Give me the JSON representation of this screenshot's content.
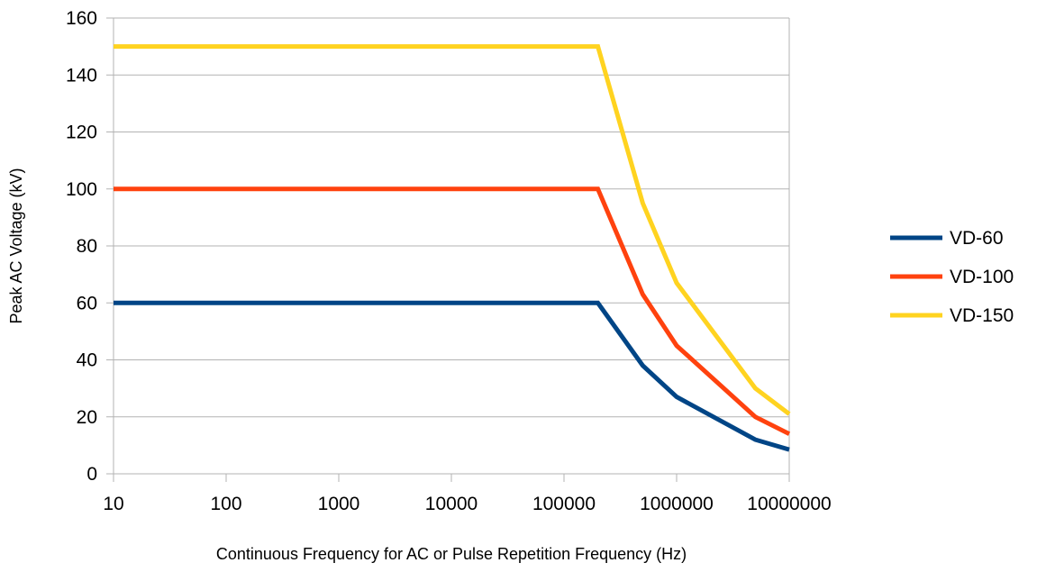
{
  "chart_data": {
    "type": "line",
    "title": "",
    "xlabel": "Continuous Frequency for AC or Pulse Repetition Frequency (Hz)",
    "ylabel": "Peak AC Voltage (kV)",
    "x_scale": "log",
    "xlim": [
      10,
      10000000
    ],
    "ylim": [
      0,
      160
    ],
    "x_ticks": [
      10,
      100,
      1000,
      10000,
      100000,
      1000000,
      10000000
    ],
    "x_tick_labels": [
      "10",
      "100",
      "1000",
      "10000",
      "100000",
      "1000000",
      "10000000"
    ],
    "y_ticks": [
      0,
      20,
      40,
      60,
      80,
      100,
      120,
      140,
      160
    ],
    "y_tick_labels": [
      "0",
      "20",
      "40",
      "60",
      "80",
      "100",
      "120",
      "140",
      "160"
    ],
    "grid": "horizontal",
    "legend_position": "right",
    "series": [
      {
        "name": "VD-60",
        "color": "#004586",
        "x": [
          10,
          200000,
          500000,
          1000000,
          5000000,
          10000000
        ],
        "y": [
          60,
          60,
          38,
          27,
          12,
          8.5
        ]
      },
      {
        "name": "VD-100",
        "color": "#ff420e",
        "x": [
          10,
          200000,
          500000,
          1000000,
          5000000,
          10000000
        ],
        "y": [
          100,
          100,
          63,
          45,
          20,
          14
        ]
      },
      {
        "name": "VD-150",
        "color": "#ffd320",
        "x": [
          10,
          200000,
          500000,
          1000000,
          5000000,
          10000000
        ],
        "y": [
          150,
          150,
          95,
          67,
          30,
          21
        ]
      }
    ]
  }
}
